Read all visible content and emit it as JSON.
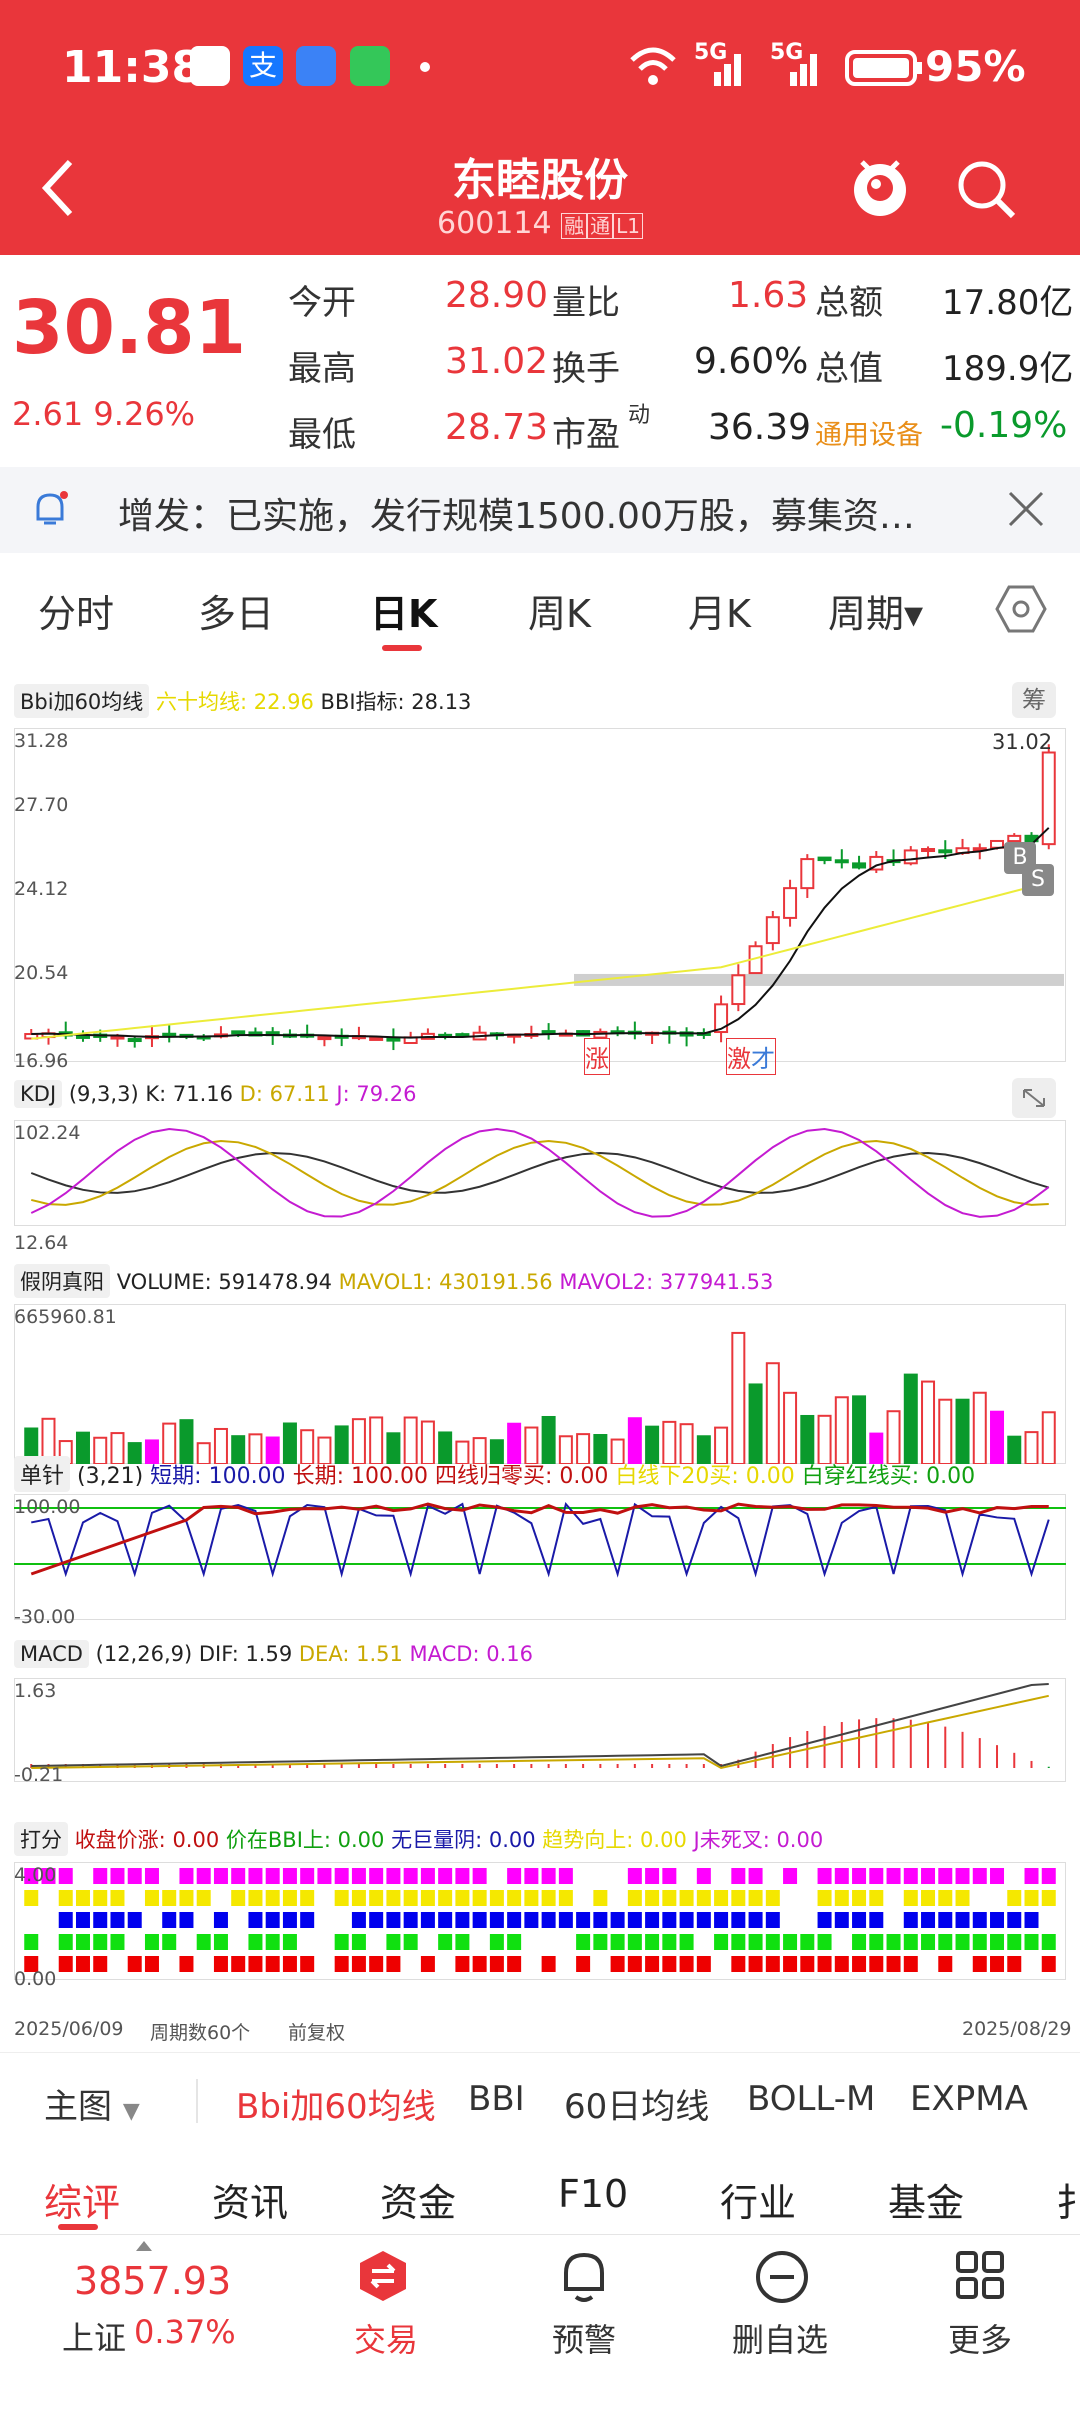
{
  "status": {
    "time": "11:38",
    "battery": "95%",
    "net1": "5G",
    "net2": "5G"
  },
  "header": {
    "title": "东睦股份",
    "code": "600114",
    "badge1": "融",
    "badge2": "通",
    "badge3": "L1"
  },
  "quote": {
    "price": "30.81",
    "change": "2.61",
    "change_pct": "9.26%",
    "open_label": "今开",
    "open": "28.90",
    "high_label": "最高",
    "high": "31.02",
    "low_label": "最低",
    "low": "28.73",
    "vr_label": "量比",
    "vr": "1.63",
    "turn_label": "换手",
    "turn": "9.60%",
    "pe_label": "市盈",
    "pe_sup": "动",
    "pe": "36.39",
    "amount_label": "总额",
    "amount": "17.80亿",
    "mcap_label": "总值",
    "mcap": "189.9亿",
    "sector": "通用设备",
    "sector_chg": "-0.19%"
  },
  "notice": {
    "text": "增发：已实施，发行规模1500.00万股，募集资…"
  },
  "period_tabs": [
    "分时",
    "多日",
    "日K",
    "周K",
    "月K",
    "周期▾"
  ],
  "main_chart": {
    "indicator": "Bbi加60均线",
    "ma60_label": "六十均线: 22.96",
    "bbi_label": "BBI指标: 28.13",
    "badge": "筹",
    "y_labels": [
      "31.28",
      "27.70",
      "24.12",
      "20.54",
      "16.96"
    ],
    "high_mark": "31.02",
    "tag_zhang": "涨",
    "tag_ji": "激",
    "tag_cai": "才",
    "b_tag": "B",
    "s_tag": "S"
  },
  "kdj": {
    "name": "KDJ",
    "params": "(9,3,3)",
    "k": "K: 71.16",
    "d": "D: 67.11",
    "j": "J: 79.26",
    "y_top": "102.24",
    "y_bot": "12.64"
  },
  "volume": {
    "name": "假阴真阳",
    "vol": "VOLUME: 591478.94",
    "m1": "MAVOL1: 430191.56",
    "m2": "MAVOL2: 377941.53",
    "y_top": "665960.81"
  },
  "needle": {
    "name": "单针",
    "params": "(3,21)",
    "short": "短期: 100.00",
    "long": "长期: 100.00",
    "f1": "四线归零买: 0.00",
    "f2": "白线下20买: 0.00",
    "f3": "白穿红线买: 0.00",
    "y_top": "100.00",
    "y_bot": "-30.00"
  },
  "macd": {
    "name": "MACD",
    "params": "(12,26,9)",
    "dif": "DIF: 1.59",
    "dea": "DEA: 1.51",
    "macd": "MACD: 0.16",
    "y_top": "1.63",
    "y_bot": "-0.21"
  },
  "score": {
    "name": "打分",
    "f1": "收盘价涨: 0.00",
    "f2": "价在BBI上: 0.00",
    "f3": "无巨量阴: 0.00",
    "f4": "趋势向上: 0.00",
    "f5": "J未死叉: 0.00",
    "y_top": "4.00",
    "y_bot": "0.00"
  },
  "footer": {
    "start": "2025/06/09",
    "period": "周期数60个",
    "adj": "前复权",
    "end": "2025/08/29"
  },
  "main_tabs": {
    "head": "主图",
    "items": [
      "Bbi加60均线",
      "BBI",
      "60日均线",
      "BOLL-M",
      "EXPMA"
    ]
  },
  "sec_tabs": [
    "综评",
    "资讯",
    "资金",
    "F10",
    "行业",
    "基金",
    "扌"
  ],
  "bottom": {
    "index_val": "3857.93",
    "index_name": "上证",
    "index_pct": "0.37%",
    "trade": "交易",
    "alert": "预警",
    "del": "删自选",
    "more": "更多"
  },
  "colors": {
    "up": "#e9363b",
    "down": "#0a9a2c",
    "accent": "#e9363b"
  }
}
